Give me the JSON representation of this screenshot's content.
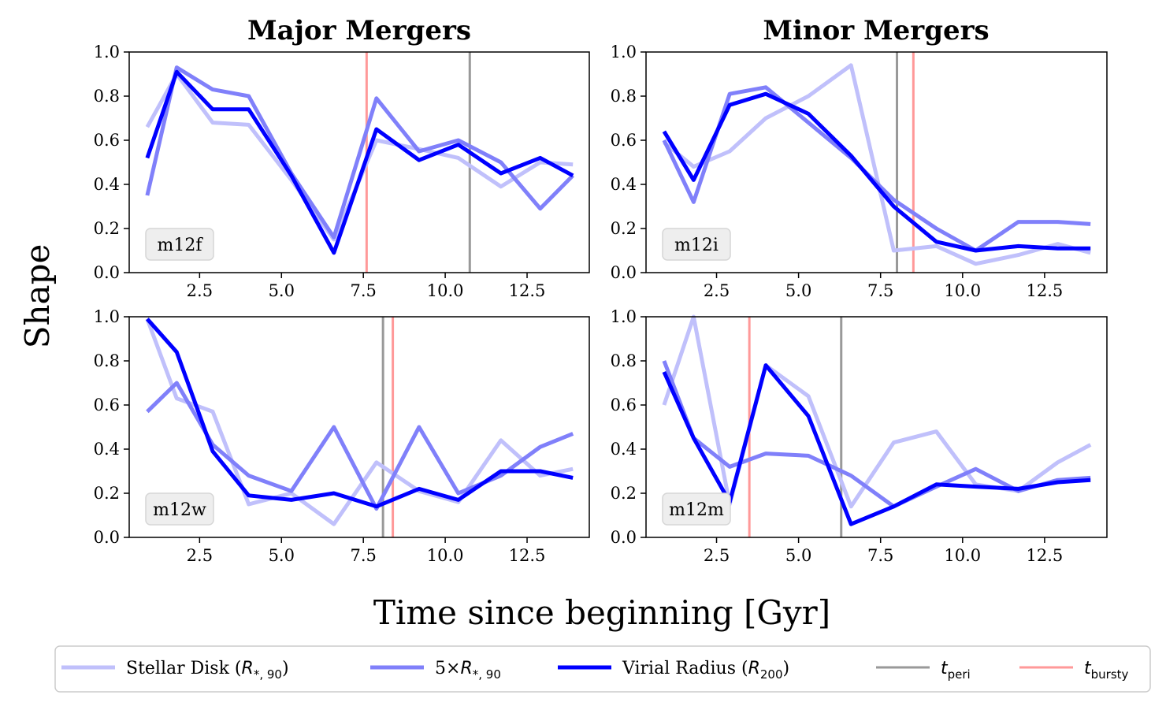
{
  "figure": {
    "col_titles": [
      "Major Mergers",
      "Minor Mergers"
    ],
    "ylabel": "Shape",
    "xlabel": "Time since beginning [Gyr]"
  },
  "colors": {
    "stellar_disk": "#c0c0fb",
    "five_r90": "#8080fa",
    "virial": "#0000ff",
    "t_peri": "#999999",
    "t_bursty": "#ff9999",
    "label_box_bg": "#eeeeee",
    "label_box_border": "#d6d6d6"
  },
  "legend": [
    {
      "key": "stellar_disk",
      "label": "Stellar Disk (R*,90)",
      "main": "Stellar Disk (",
      "sym": "R",
      "sub": "*, 90",
      "tail": ")"
    },
    {
      "key": "five_r90",
      "label": "5×R*,90",
      "main": "5×",
      "sym": "R",
      "sub": "*, 90",
      "tail": ""
    },
    {
      "key": "virial",
      "label": "Virial Radius (R200)",
      "main": "Virial Radius (",
      "sym": "R",
      "sub": "200",
      "tail": ")"
    },
    {
      "key": "t_peri",
      "label": "t_peri",
      "main": "",
      "sym": "t",
      "sub": "peri",
      "tail": ""
    },
    {
      "key": "t_bursty",
      "label": "t_bursty",
      "main": "",
      "sym": "t",
      "sub": "bursty",
      "tail": ""
    }
  ],
  "chart_data": [
    {
      "type": "line",
      "panel": "m12f",
      "column": "Major Mergers",
      "xlim": [
        0.35,
        14.4
      ],
      "ylim": [
        0,
        1.0
      ],
      "xticks": [
        2.5,
        5.0,
        7.5,
        10.0,
        12.5
      ],
      "xtick_labels": [
        "2.5",
        "5.0",
        "7.5",
        "10.0",
        "12.5"
      ],
      "yticks": [
        0,
        0.2,
        0.4,
        0.6,
        0.8,
        1.0
      ],
      "ytick_labels": [
        "0.0",
        "0.2",
        "0.4",
        "0.6",
        "0.8",
        "1.0"
      ],
      "t_peri": 10.75,
      "t_bursty": 7.6,
      "x": [
        0.9,
        1.8,
        2.9,
        4.0,
        5.3,
        6.6,
        7.9,
        9.2,
        10.4,
        11.7,
        12.9,
        13.9
      ],
      "series": [
        {
          "key": "stellar_disk",
          "name": "Stellar Disk (R*,90)",
          "values": [
            0.66,
            0.9,
            0.68,
            0.67,
            0.42,
            0.15,
            0.6,
            0.56,
            0.52,
            0.39,
            0.5,
            0.49
          ]
        },
        {
          "key": "five_r90",
          "name": "5×R*,90",
          "values": [
            0.35,
            0.93,
            0.83,
            0.8,
            0.45,
            0.16,
            0.79,
            0.55,
            0.6,
            0.5,
            0.29,
            0.44
          ]
        },
        {
          "key": "virial",
          "name": "Virial Radius (R200)",
          "values": [
            0.52,
            0.91,
            0.74,
            0.74,
            0.44,
            0.09,
            0.65,
            0.51,
            0.58,
            0.45,
            0.52,
            0.44
          ]
        }
      ]
    },
    {
      "type": "line",
      "panel": "m12i",
      "column": "Minor Mergers",
      "xlim": [
        0.35,
        14.4
      ],
      "ylim": [
        0,
        1.0
      ],
      "xticks": [
        2.5,
        5.0,
        7.5,
        10.0,
        12.5
      ],
      "xtick_labels": [
        "2.5",
        "5.0",
        "7.5",
        "10.0",
        "12.5"
      ],
      "yticks": [
        0,
        0.2,
        0.4,
        0.6,
        0.8,
        1.0
      ],
      "ytick_labels": [
        "0.0",
        "0.2",
        "0.4",
        "0.6",
        "0.8",
        "1.0"
      ],
      "t_peri": 8.0,
      "t_bursty": 8.5,
      "x": [
        0.9,
        1.8,
        2.9,
        4.0,
        5.3,
        6.6,
        7.9,
        9.2,
        10.4,
        11.7,
        12.9,
        13.9
      ],
      "series": [
        {
          "key": "stellar_disk",
          "name": "Stellar Disk (R*,90)",
          "values": [
            0.59,
            0.48,
            0.55,
            0.7,
            0.8,
            0.94,
            0.1,
            0.12,
            0.04,
            0.08,
            0.13,
            0.09
          ]
        },
        {
          "key": "five_r90",
          "name": "5×R*,90",
          "values": [
            0.6,
            0.32,
            0.81,
            0.84,
            0.68,
            0.52,
            0.33,
            0.2,
            0.1,
            0.23,
            0.23,
            0.22
          ]
        },
        {
          "key": "virial",
          "name": "Virial Radius (R200)",
          "values": [
            0.64,
            0.42,
            0.76,
            0.81,
            0.72,
            0.53,
            0.3,
            0.14,
            0.1,
            0.12,
            0.11,
            0.11
          ]
        }
      ]
    },
    {
      "type": "line",
      "panel": "m12w",
      "column": "Major Mergers",
      "xlim": [
        0.35,
        14.4
      ],
      "ylim": [
        0,
        1.0
      ],
      "xticks": [
        2.5,
        5.0,
        7.5,
        10.0,
        12.5
      ],
      "xtick_labels": [
        "2.5",
        "5.0",
        "7.5",
        "10.0",
        "12.5"
      ],
      "yticks": [
        0,
        0.2,
        0.4,
        0.6,
        0.8,
        1.0
      ],
      "ytick_labels": [
        "0.0",
        "0.2",
        "0.4",
        "0.6",
        "0.8",
        "1.0"
      ],
      "t_peri": 8.1,
      "t_bursty": 8.4,
      "x": [
        0.9,
        1.8,
        2.9,
        4.0,
        5.3,
        6.6,
        7.9,
        9.2,
        10.4,
        11.7,
        12.9,
        13.9
      ],
      "series": [
        {
          "key": "stellar_disk",
          "name": "Stellar Disk (R*,90)",
          "values": [
            0.99,
            0.63,
            0.57,
            0.15,
            0.2,
            0.06,
            0.34,
            0.21,
            0.16,
            0.44,
            0.28,
            0.31
          ]
        },
        {
          "key": "five_r90",
          "name": "5×R*,90",
          "values": [
            0.57,
            0.7,
            0.42,
            0.28,
            0.21,
            0.5,
            0.13,
            0.5,
            0.2,
            0.28,
            0.41,
            0.47
          ]
        },
        {
          "key": "virial",
          "name": "Virial Radius (R200)",
          "values": [
            0.99,
            0.84,
            0.39,
            0.19,
            0.17,
            0.2,
            0.14,
            0.22,
            0.17,
            0.3,
            0.3,
            0.27
          ]
        }
      ]
    },
    {
      "type": "line",
      "panel": "m12m",
      "column": "Minor Mergers",
      "xlim": [
        0.35,
        14.4
      ],
      "ylim": [
        0,
        1.0
      ],
      "xticks": [
        2.5,
        5.0,
        7.5,
        10.0,
        12.5
      ],
      "xtick_labels": [
        "2.5",
        "5.0",
        "7.5",
        "10.0",
        "12.5"
      ],
      "yticks": [
        0,
        0.2,
        0.4,
        0.6,
        0.8,
        1.0
      ],
      "ytick_labels": [
        "0.0",
        "0.2",
        "0.4",
        "0.6",
        "0.8",
        "1.0"
      ],
      "t_peri": 6.3,
      "t_bursty": 3.5,
      "x": [
        0.9,
        1.8,
        2.9,
        4.0,
        5.3,
        6.6,
        7.9,
        9.2,
        10.4,
        11.7,
        12.9,
        13.9
      ],
      "series": [
        {
          "key": "stellar_disk",
          "name": "Stellar Disk (R*,90)",
          "values": [
            0.6,
            1.0,
            0.15,
            0.78,
            0.64,
            0.14,
            0.43,
            0.48,
            0.24,
            0.21,
            0.34,
            0.42
          ]
        },
        {
          "key": "five_r90",
          "name": "5×R*,90",
          "values": [
            0.8,
            0.45,
            0.32,
            0.38,
            0.37,
            0.28,
            0.14,
            0.23,
            0.31,
            0.21,
            0.26,
            0.27
          ]
        },
        {
          "key": "virial",
          "name": "Virial Radius (R200)",
          "values": [
            0.75,
            0.45,
            0.16,
            0.78,
            0.55,
            0.06,
            0.14,
            0.24,
            0.23,
            0.22,
            0.25,
            0.26
          ]
        }
      ]
    }
  ]
}
